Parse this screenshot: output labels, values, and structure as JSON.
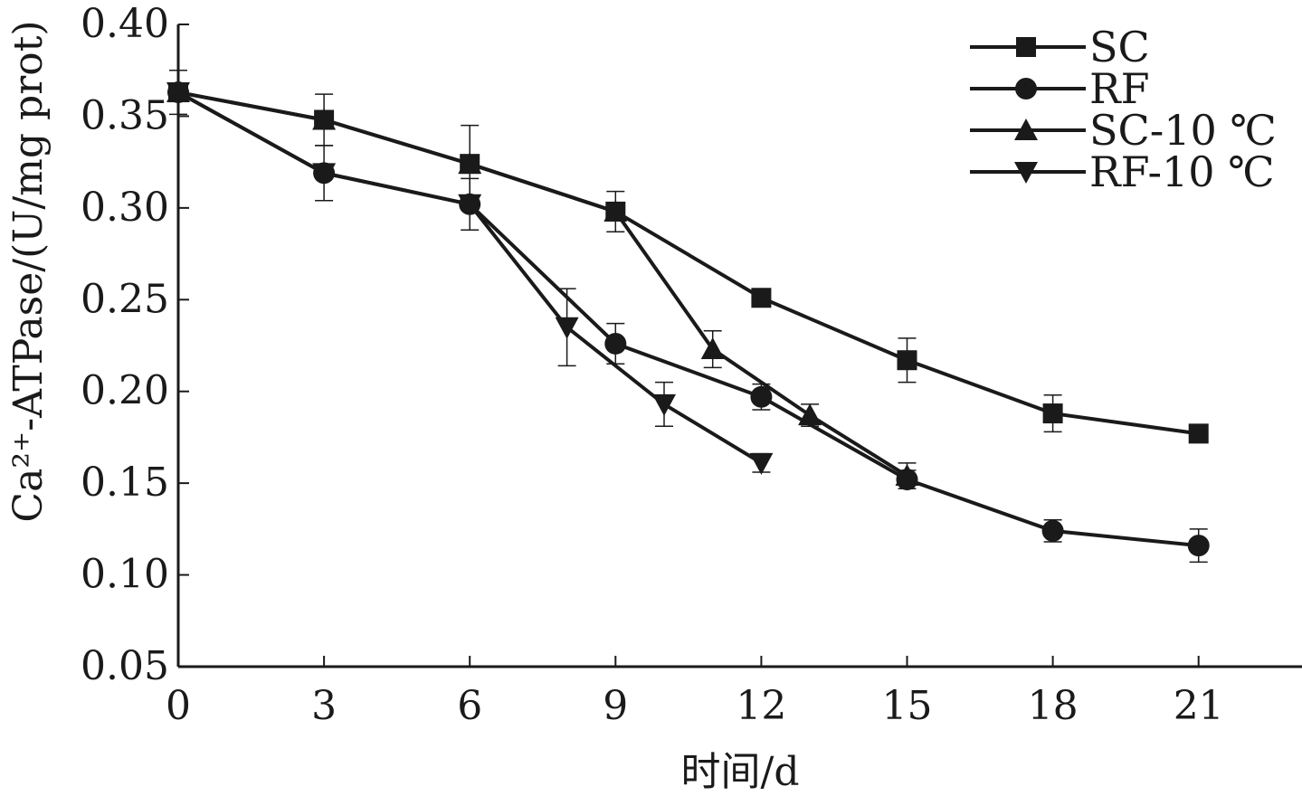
{
  "chart_data": {
    "type": "line",
    "xlabel": "时间/d",
    "ylabel": "Ca²⁺-ATPase/(U/mg prot)",
    "xlim": [
      0,
      23.5
    ],
    "ylim": [
      0.05,
      0.4
    ],
    "xticks": [
      "0",
      "3",
      "6",
      "9",
      "12",
      "15",
      "18",
      "21"
    ],
    "xtick_values": [
      0,
      3,
      6,
      9,
      12,
      15,
      18,
      21
    ],
    "yticks": [
      "0.40",
      "0.35",
      "0.30",
      "0.25",
      "0.20",
      "0.15",
      "0.10",
      "0.05"
    ],
    "ytick_values": [
      0.4,
      0.35,
      0.3,
      0.25,
      0.2,
      0.15,
      0.1,
      0.05
    ],
    "grid": false,
    "legend_position": "top-right",
    "color": "#1a1a1a",
    "series": [
      {
        "name": "SC",
        "marker": "square",
        "x": [
          0,
          3,
          6,
          9,
          12,
          15,
          18,
          21
        ],
        "y": [
          0.363,
          0.348,
          0.324,
          0.298,
          0.251,
          0.217,
          0.188,
          0.177
        ],
        "err": [
          0.012,
          0.014,
          0.021,
          0.011,
          0.0,
          0.012,
          0.01,
          0.004
        ]
      },
      {
        "name": "RF",
        "marker": "circle",
        "x": [
          0,
          3,
          6,
          9,
          12,
          15,
          18,
          21
        ],
        "y": [
          0.363,
          0.319,
          0.302,
          0.226,
          0.197,
          0.152,
          0.124,
          0.116
        ],
        "err": [
          0.0,
          0.015,
          0.014,
          0.011,
          0.007,
          0.005,
          0.006,
          0.009
        ]
      },
      {
        "name": "SC-10 ℃",
        "marker": "triangle-up",
        "x": [
          0,
          3,
          6,
          9,
          11,
          13,
          15
        ],
        "y": [
          0.363,
          0.348,
          0.324,
          0.298,
          0.223,
          0.187,
          0.154
        ],
        "err": [
          0.0,
          0.0,
          0.0,
          0.0,
          0.01,
          0.006,
          0.007
        ]
      },
      {
        "name": "RF-10 ℃",
        "marker": "triangle-down",
        "x": [
          0,
          3,
          6,
          8,
          10,
          12
        ],
        "y": [
          0.363,
          0.319,
          0.302,
          0.235,
          0.193,
          0.161
        ],
        "err": [
          0.0,
          0.0,
          0.0,
          0.021,
          0.012,
          0.005
        ]
      }
    ]
  }
}
